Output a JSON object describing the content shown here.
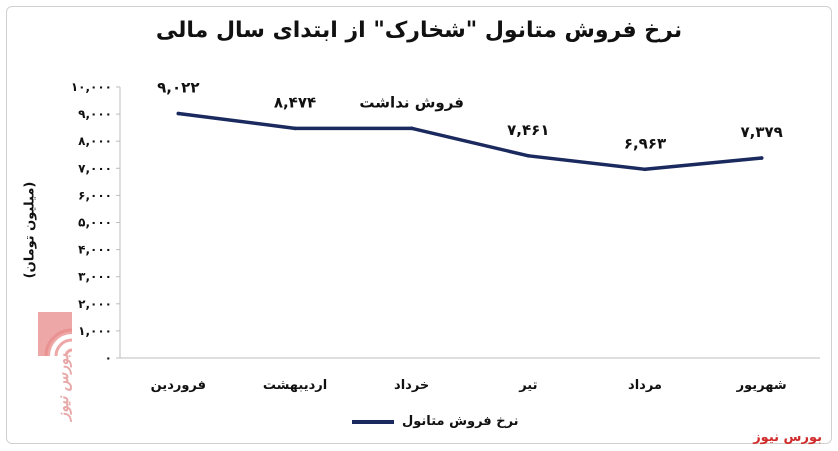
{
  "chart_data": {
    "type": "line",
    "title": "نرخ فروش متانول \"شخارک\" از ابتدای سال مالی",
    "ylabel": "(میلیون تومان)",
    "xlabel": "",
    "ylim": [
      0,
      10000
    ],
    "y_ticks": [
      "۰",
      "۱,۰۰۰",
      "۲,۰۰۰",
      "۳,۰۰۰",
      "۴,۰۰۰",
      "۵,۰۰۰",
      "۶,۰۰۰",
      "۷,۰۰۰",
      "۸,۰۰۰",
      "۹,۰۰۰",
      "۱۰,۰۰۰"
    ],
    "categories": [
      "فروردین",
      "اردیبهشت",
      "خرداد",
      "تیر",
      "مرداد",
      "شهریور"
    ],
    "series": [
      {
        "name": "نرخ فروش متانول",
        "values": [
          9022,
          8474,
          8474,
          7461,
          6963,
          7379
        ],
        "labels": [
          "۹,۰۲۲",
          "۸,۴۷۴",
          "فروش نداشت",
          "۷,۴۶۱",
          "۶,۹۶۳",
          "۷,۳۷۹"
        ],
        "color": "#1b2a5e"
      }
    ],
    "grid": false,
    "legend": "bottom"
  },
  "source": "بورس نیوز",
  "watermark": "بورس نیوز"
}
